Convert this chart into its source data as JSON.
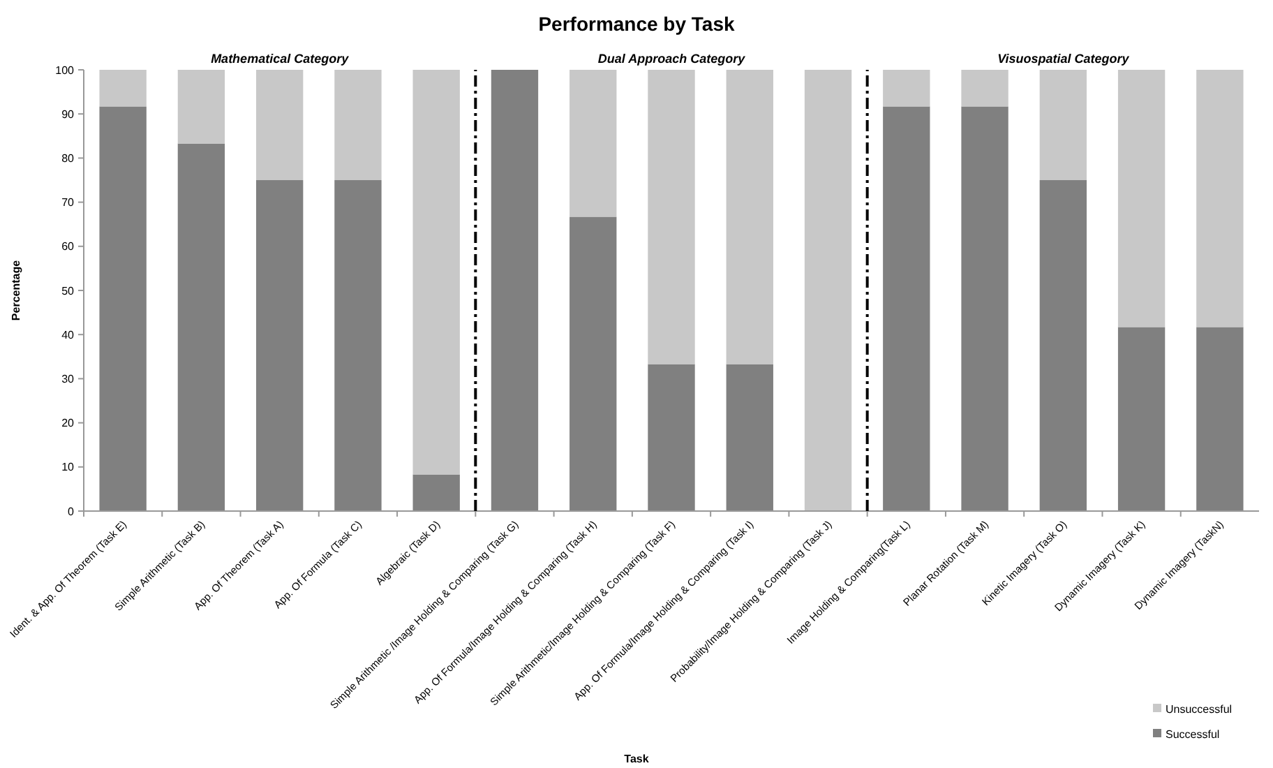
{
  "chart_data": {
    "type": "bar",
    "title": "Performance by Task",
    "xlabel": "Task",
    "ylabel": "Percentage",
    "categories": [
      "Ident. & App. Of Theorem  (Task E)",
      "Simple Arithmetic (Task B)",
      "App. Of Theorem (Task A)",
      "App. Of Formula (Task C)",
      "Algebraic (Task D)",
      "Simple Arithmetic /Image Holding & Comparing (Task G)",
      "App. Of Formula/Image Holding & Comparing  (Task H)",
      "Simple Arithmetic/Image Holding & Comparing  (Task F)",
      "App. Of Formula/Image Holding & Comparing  (Task I)",
      "Probability/Image Holding  & Comparing (Task J)",
      "Image Holding & Comparing(Task L)",
      "Planar Rotation (Task M)",
      "Kinetic  Imagery (Task O)",
      "Dynamic Imagery (Task K)",
      "Dynamic Imagery (TaskN)"
    ],
    "series": [
      {
        "name": "Successful",
        "color": "#808080",
        "values": [
          91.7,
          83.3,
          75,
          75,
          8.3,
          100,
          66.7,
          33.3,
          33.3,
          0,
          91.7,
          91.7,
          75,
          41.7,
          41.7
        ]
      },
      {
        "name": "Unsuccessful",
        "color": "#c8c8c8",
        "values": [
          8.3,
          16.7,
          25,
          25,
          91.7,
          0,
          33.3,
          66.7,
          66.7,
          100,
          8.3,
          8.3,
          25,
          58.3,
          58.3
        ]
      }
    ],
    "stacked": true,
    "ylim": [
      0,
      100
    ],
    "yticks": [
      0,
      10,
      20,
      30,
      40,
      50,
      60,
      70,
      80,
      90,
      100
    ],
    "grid": false,
    "legend": "bottom right",
    "annotations": [
      {
        "text": "Mathematical Category",
        "x": "App. Of Theorem (Task A)",
        "y": 100
      },
      {
        "text": "Dual Approach Category",
        "x": "Simple Arithmetic/Image Holding & Comparing  (Task F)",
        "y": 100
      },
      {
        "text": "Visuospatial Category",
        "x": "Kinetic  Imagery (Task O)",
        "y": 100
      }
    ]
  }
}
